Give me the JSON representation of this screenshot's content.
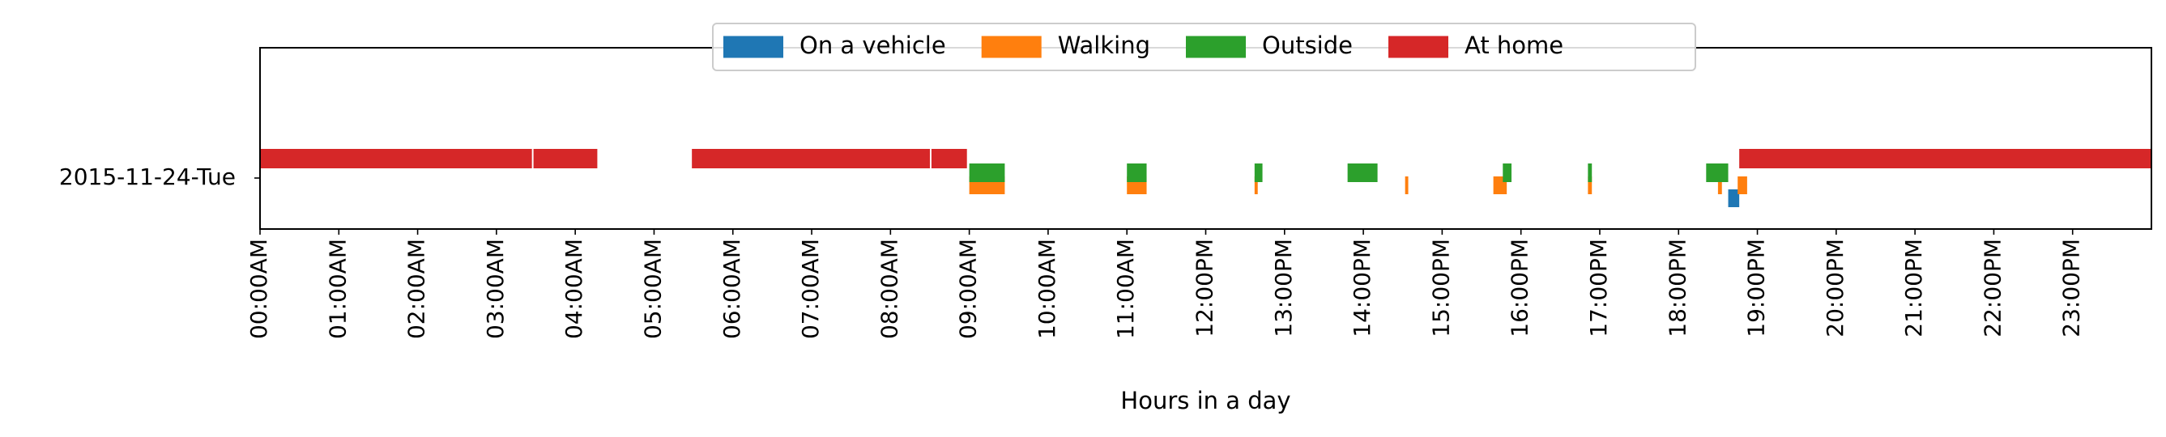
{
  "chart_data": {
    "type": "timeline",
    "xlabel": "Hours in a day",
    "ylabel": "",
    "xlim": [
      0,
      24
    ],
    "grid": false,
    "legend_position": "top-center",
    "row_label": "2015-11-24-Tue",
    "x_tick_labels": [
      "00:00AM",
      "01:00AM",
      "02:00AM",
      "03:00AM",
      "04:00AM",
      "05:00AM",
      "06:00AM",
      "07:00AM",
      "08:00AM",
      "09:00AM",
      "10:00AM",
      "11:00AM",
      "12:00PM",
      "13:00PM",
      "14:00PM",
      "15:00PM",
      "16:00PM",
      "17:00PM",
      "18:00PM",
      "19:00PM",
      "20:00PM",
      "21:00PM",
      "22:00PM",
      "23:00PM"
    ],
    "series": [
      {
        "name": "On a vehicle",
        "color": "#1f77b4",
        "segments": [
          [
            18.63,
            18.77
          ]
        ]
      },
      {
        "name": "Walking",
        "color": "#ff7f0e",
        "segments": [
          [
            9.0,
            9.45
          ],
          [
            11.0,
            11.25
          ],
          [
            12.62,
            12.66
          ],
          [
            14.53,
            14.57
          ],
          [
            15.65,
            15.82
          ],
          [
            16.85,
            16.9
          ],
          [
            18.5,
            18.55
          ],
          [
            18.75,
            18.87
          ]
        ]
      },
      {
        "name": "Outside",
        "color": "#2ca02c",
        "segments": [
          [
            9.0,
            9.45
          ],
          [
            11.0,
            11.25
          ],
          [
            12.62,
            12.72
          ],
          [
            13.8,
            14.18
          ],
          [
            15.77,
            15.88
          ],
          [
            16.85,
            16.9
          ],
          [
            18.35,
            18.63
          ]
        ]
      },
      {
        "name": "At home",
        "color": "#d62728",
        "segments": [
          [
            0.0,
            3.45
          ],
          [
            3.47,
            4.28
          ],
          [
            5.48,
            8.5
          ],
          [
            8.52,
            8.97
          ],
          [
            18.77,
            24.0
          ]
        ]
      }
    ]
  }
}
